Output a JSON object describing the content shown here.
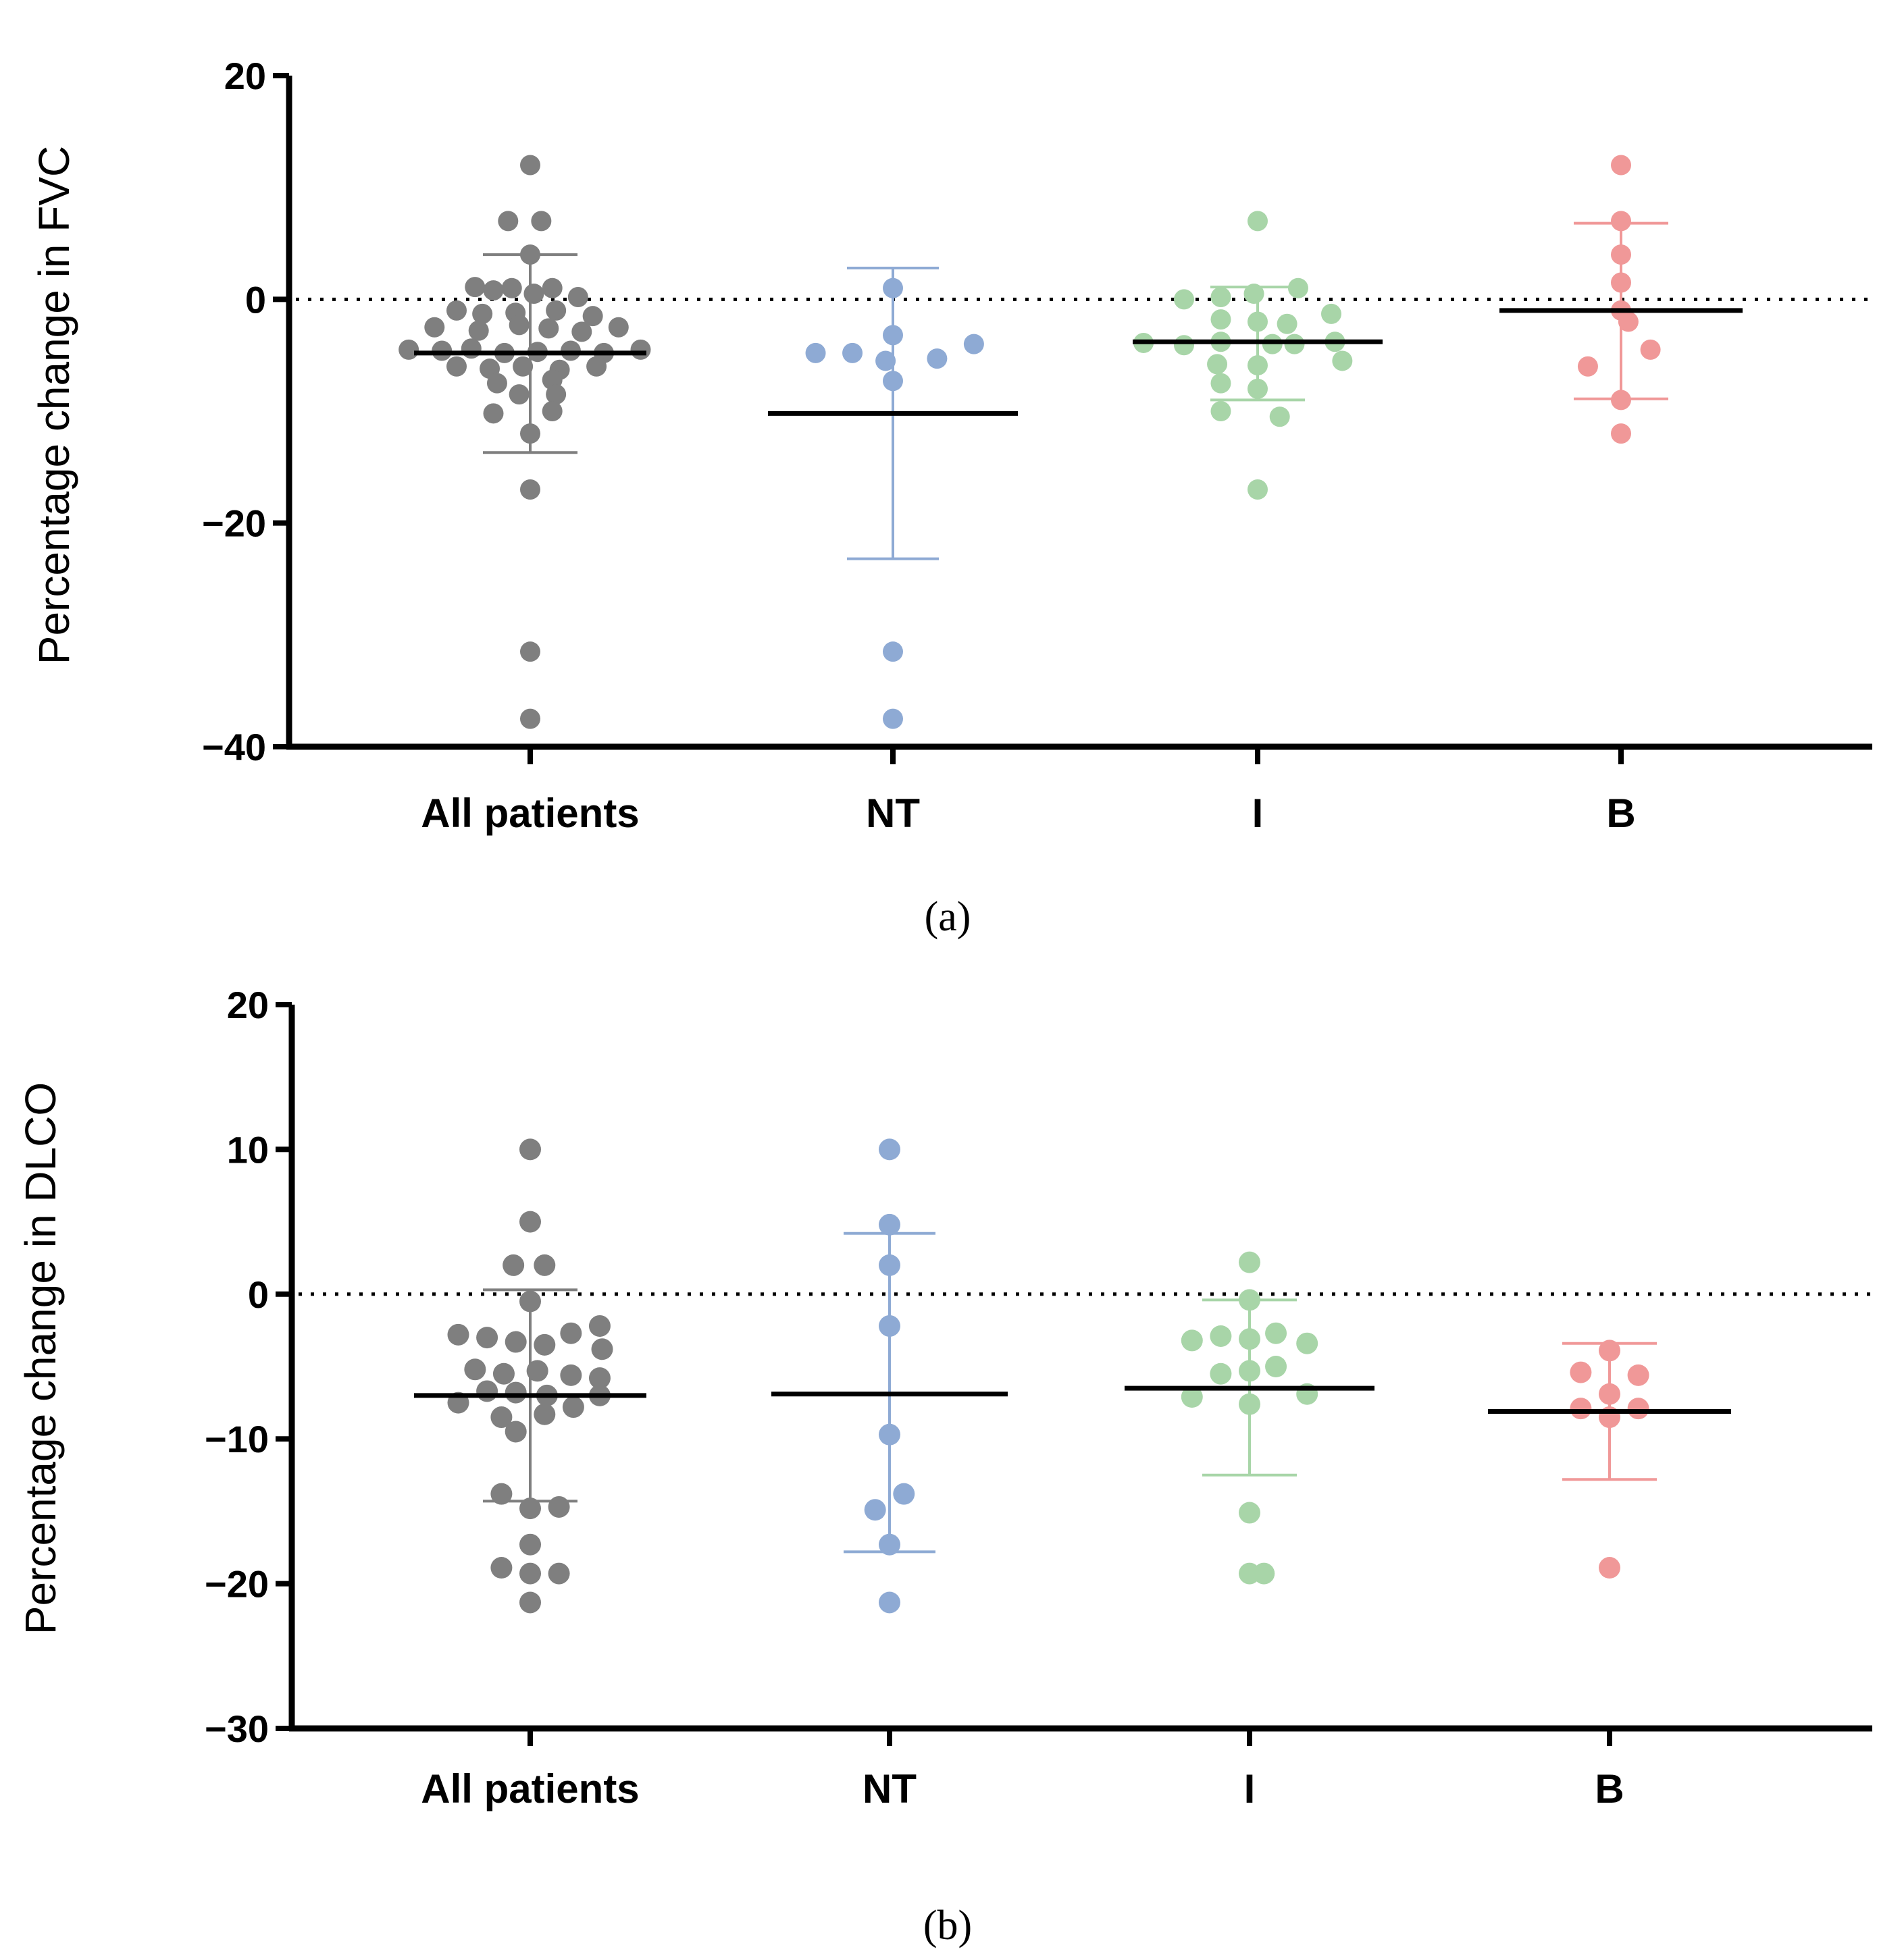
{
  "chart_data": [
    {
      "type": "scatter",
      "panel_label": "(a)",
      "ylabel": "Percentage change in  FVC",
      "ylim": [
        -40,
        20
      ],
      "yticks": [
        20,
        0,
        -20,
        -40
      ],
      "ytick_labels": [
        "20",
        "0",
        "−20",
        "−40"
      ],
      "reference_line": 0,
      "categories": [
        "All patients",
        "NT",
        "I",
        "B"
      ],
      "groups": [
        {
          "name": "All patients",
          "color": "#7f7f7f",
          "mean": -4.8,
          "sd_upper": 4.0,
          "sd_lower": -13.7,
          "points": [
            {
              "dx": 0,
              "y": 12
            },
            {
              "dx": -0.06,
              "y": 7
            },
            {
              "dx": 0.03,
              "y": 7
            },
            {
              "dx": 0,
              "y": 4
            },
            {
              "dx": -0.15,
              "y": 1.1
            },
            {
              "dx": -0.1,
              "y": 0.8
            },
            {
              "dx": -0.05,
              "y": 1
            },
            {
              "dx": 0.01,
              "y": 0.5
            },
            {
              "dx": 0.06,
              "y": 1
            },
            {
              "dx": 0.13,
              "y": 0.2
            },
            {
              "dx": -0.2,
              "y": -1
            },
            {
              "dx": -0.13,
              "y": -1.3
            },
            {
              "dx": -0.04,
              "y": -1.2
            },
            {
              "dx": 0.07,
              "y": -1
            },
            {
              "dx": 0.17,
              "y": -1.5
            },
            {
              "dx": -0.26,
              "y": -2.5
            },
            {
              "dx": -0.14,
              "y": -2.8
            },
            {
              "dx": -0.03,
              "y": -2.3
            },
            {
              "dx": 0.05,
              "y": -2.6
            },
            {
              "dx": 0.14,
              "y": -2.9
            },
            {
              "dx": 0.24,
              "y": -2.5
            },
            {
              "dx": -0.33,
              "y": -4.5
            },
            {
              "dx": -0.24,
              "y": -4.6
            },
            {
              "dx": -0.16,
              "y": -4.4
            },
            {
              "dx": -0.07,
              "y": -4.8
            },
            {
              "dx": 0.02,
              "y": -4.7
            },
            {
              "dx": 0.11,
              "y": -4.6
            },
            {
              "dx": 0.2,
              "y": -4.8
            },
            {
              "dx": 0.3,
              "y": -4.5
            },
            {
              "dx": -0.2,
              "y": -6
            },
            {
              "dx": -0.11,
              "y": -6.2
            },
            {
              "dx": -0.02,
              "y": -6
            },
            {
              "dx": 0.08,
              "y": -6.3
            },
            {
              "dx": 0.18,
              "y": -6
            },
            {
              "dx": -0.09,
              "y": -7.5
            },
            {
              "dx": 0.06,
              "y": -7.2
            },
            {
              "dx": -0.03,
              "y": -8.5
            },
            {
              "dx": 0.07,
              "y": -8.5
            },
            {
              "dx": -0.1,
              "y": -10.2
            },
            {
              "dx": 0.06,
              "y": -10
            },
            {
              "dx": 0,
              "y": -12
            },
            {
              "dx": 0,
              "y": -17
            },
            {
              "dx": 0,
              "y": -31.5
            },
            {
              "dx": 0,
              "y": -37.5
            }
          ]
        },
        {
          "name": "NT",
          "color": "#8eaad4",
          "mean": -10.2,
          "sd_upper": 2.8,
          "sd_lower": -23.2,
          "points": [
            {
              "dx": 0,
              "y": 1
            },
            {
              "dx": 0,
              "y": -3.2
            },
            {
              "dx": 0.22,
              "y": -4
            },
            {
              "dx": -0.21,
              "y": -4.8
            },
            {
              "dx": -0.11,
              "y": -4.8
            },
            {
              "dx": 0.12,
              "y": -5.3
            },
            {
              "dx": -0.02,
              "y": -5.5
            },
            {
              "dx": 0,
              "y": -7.3
            },
            {
              "dx": 0,
              "y": -31.5
            },
            {
              "dx": 0,
              "y": -37.5
            }
          ]
        },
        {
          "name": "I",
          "color": "#a8d5a8",
          "mean": -3.8,
          "sd_upper": 1.1,
          "sd_lower": -9.0,
          "points": [
            {
              "dx": 0,
              "y": 7
            },
            {
              "dx": 0.11,
              "y": 1
            },
            {
              "dx": -0.1,
              "y": 0.2
            },
            {
              "dx": -0.01,
              "y": 0.5
            },
            {
              "dx": -0.2,
              "y": 0
            },
            {
              "dx": -0.1,
              "y": -1.8
            },
            {
              "dx": 0,
              "y": -2
            },
            {
              "dx": 0.08,
              "y": -2.2
            },
            {
              "dx": 0.2,
              "y": -1.3
            },
            {
              "dx": -0.31,
              "y": -3.9
            },
            {
              "dx": -0.2,
              "y": -4.1
            },
            {
              "dx": -0.1,
              "y": -3.8
            },
            {
              "dx": 0.04,
              "y": -4
            },
            {
              "dx": 0.1,
              "y": -4
            },
            {
              "dx": 0.21,
              "y": -3.8
            },
            {
              "dx": -0.11,
              "y": -5.8
            },
            {
              "dx": 0,
              "y": -5.9
            },
            {
              "dx": 0.23,
              "y": -5.5
            },
            {
              "dx": -0.1,
              "y": -7.5
            },
            {
              "dx": 0,
              "y": -8
            },
            {
              "dx": -0.1,
              "y": -10
            },
            {
              "dx": 0.06,
              "y": -10.5
            },
            {
              "dx": 0,
              "y": -17
            }
          ]
        },
        {
          "name": "B",
          "color": "#f09898",
          "mean": -1.0,
          "sd_upper": 6.8,
          "sd_lower": -8.9,
          "points": [
            {
              "dx": 0,
              "y": 12
            },
            {
              "dx": 0,
              "y": 7
            },
            {
              "dx": 0,
              "y": 4
            },
            {
              "dx": 0,
              "y": 1.5
            },
            {
              "dx": 0,
              "y": -1
            },
            {
              "dx": 0.02,
              "y": -2
            },
            {
              "dx": 0.08,
              "y": -4.5
            },
            {
              "dx": -0.09,
              "y": -6
            },
            {
              "dx": 0,
              "y": -9
            },
            {
              "dx": 0,
              "y": -12
            }
          ]
        }
      ]
    },
    {
      "type": "scatter",
      "panel_label": "(b)",
      "ylabel": "Percentage change in DLCO",
      "ylim": [
        -30,
        20
      ],
      "yticks": [
        20,
        10,
        0,
        -10,
        -20,
        -30
      ],
      "ytick_labels": [
        "20",
        "10",
        "0",
        "−10",
        "−20",
        "−30"
      ],
      "reference_line": 0,
      "categories": [
        "All patients",
        "NT",
        "I",
        "B"
      ],
      "groups": [
        {
          "name": "All patients",
          "color": "#7f7f7f",
          "mean": -7.0,
          "sd_upper": 0.3,
          "sd_lower": -14.3,
          "points": [
            {
              "dx": 0,
              "y": 10
            },
            {
              "dx": 0,
              "y": 5
            },
            {
              "dx": -0.07,
              "y": 2
            },
            {
              "dx": 0.06,
              "y": 2
            },
            {
              "dx": 0,
              "y": -0.5
            },
            {
              "dx": -0.3,
              "y": -2.8
            },
            {
              "dx": -0.18,
              "y": -3
            },
            {
              "dx": 0.17,
              "y": -2.7
            },
            {
              "dx": 0.29,
              "y": -2.2
            },
            {
              "dx": -0.06,
              "y": -3.3
            },
            {
              "dx": 0.06,
              "y": -3.5
            },
            {
              "dx": 0.3,
              "y": -3.8
            },
            {
              "dx": -0.23,
              "y": -5.2
            },
            {
              "dx": -0.11,
              "y": -5.5
            },
            {
              "dx": 0.03,
              "y": -5.3
            },
            {
              "dx": 0.17,
              "y": -5.6
            },
            {
              "dx": 0.29,
              "y": -5.8
            },
            {
              "dx": -0.3,
              "y": -7.5
            },
            {
              "dx": -0.18,
              "y": -6.7
            },
            {
              "dx": -0.06,
              "y": -6.8
            },
            {
              "dx": 0.07,
              "y": -7
            },
            {
              "dx": 0.29,
              "y": -7
            },
            {
              "dx": -0.12,
              "y": -8.5
            },
            {
              "dx": 0.06,
              "y": -8.3
            },
            {
              "dx": 0.18,
              "y": -7.8
            },
            {
              "dx": -0.06,
              "y": -9.5
            },
            {
              "dx": -0.12,
              "y": -13.8
            },
            {
              "dx": 0,
              "y": -14.8
            },
            {
              "dx": 0.12,
              "y": -14.7
            },
            {
              "dx": 0,
              "y": -17.3
            },
            {
              "dx": -0.12,
              "y": -18.9
            },
            {
              "dx": 0,
              "y": -19.3
            },
            {
              "dx": 0.12,
              "y": -19.3
            },
            {
              "dx": 0,
              "y": -21.3
            }
          ]
        },
        {
          "name": "NT",
          "color": "#8eaad4",
          "mean": -6.9,
          "sd_upper": 4.2,
          "sd_lower": -17.8,
          "points": [
            {
              "dx": 0,
              "y": 10
            },
            {
              "dx": 0,
              "y": 4.8
            },
            {
              "dx": 0,
              "y": 2
            },
            {
              "dx": 0,
              "y": -2.2
            },
            {
              "dx": 0,
              "y": -9.7
            },
            {
              "dx": 0.06,
              "y": -13.8
            },
            {
              "dx": -0.06,
              "y": -14.9
            },
            {
              "dx": 0,
              "y": -17.3
            },
            {
              "dx": 0,
              "y": -21.3
            }
          ]
        },
        {
          "name": "I",
          "color": "#a8d5a8",
          "mean": -6.5,
          "sd_upper": -0.4,
          "sd_lower": -12.5,
          "points": [
            {
              "dx": 0,
              "y": 2.2
            },
            {
              "dx": 0,
              "y": -0.4
            },
            {
              "dx": -0.24,
              "y": -3.2
            },
            {
              "dx": -0.12,
              "y": -2.9
            },
            {
              "dx": 0,
              "y": -3.1
            },
            {
              "dx": 0.11,
              "y": -2.7
            },
            {
              "dx": 0.24,
              "y": -3.4
            },
            {
              "dx": -0.12,
              "y": -5.5
            },
            {
              "dx": 0,
              "y": -5.3
            },
            {
              "dx": 0.11,
              "y": -5
            },
            {
              "dx": -0.24,
              "y": -7.1
            },
            {
              "dx": 0,
              "y": -7.6
            },
            {
              "dx": 0.24,
              "y": -6.9
            },
            {
              "dx": 0,
              "y": -15.1
            },
            {
              "dx": 0,
              "y": -19.3
            },
            {
              "dx": 0.06,
              "y": -19.3
            }
          ]
        },
        {
          "name": "B",
          "color": "#f09898",
          "mean": -8.1,
          "sd_upper": -3.4,
          "sd_lower": -12.8,
          "points": [
            {
              "dx": 0,
              "y": -3.9
            },
            {
              "dx": -0.12,
              "y": -5.4
            },
            {
              "dx": 0.12,
              "y": -5.6
            },
            {
              "dx": 0,
              "y": -6.9
            },
            {
              "dx": -0.12,
              "y": -7.9
            },
            {
              "dx": 0,
              "y": -8.5
            },
            {
              "dx": 0.12,
              "y": -7.9
            },
            {
              "dx": 0,
              "y": -18.9
            }
          ]
        }
      ]
    }
  ]
}
